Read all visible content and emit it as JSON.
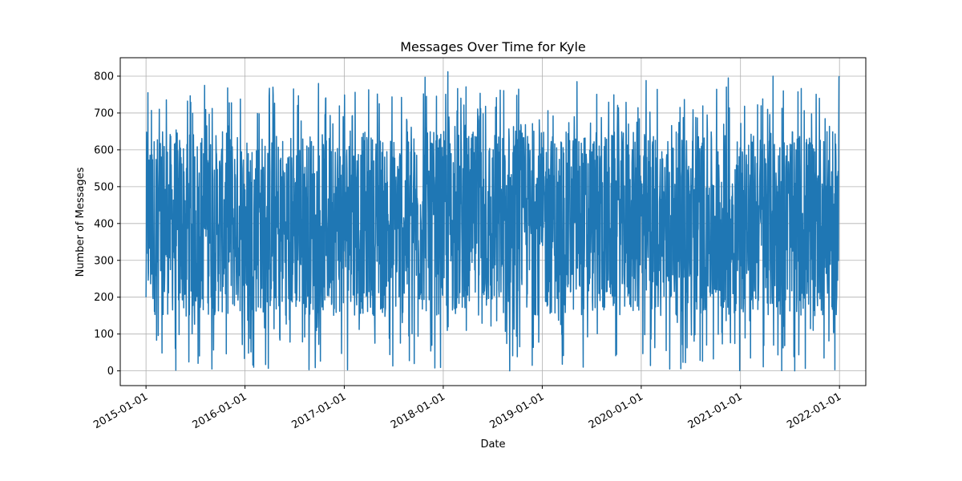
{
  "chart_data": {
    "type": "line",
    "title": "Messages Over Time for Kyle",
    "xlabel": "Date",
    "ylabel": "Number of Messages",
    "x_ticks": [
      "2015-01-01",
      "2016-01-01",
      "2017-01-01",
      "2018-01-01",
      "2019-01-01",
      "2020-01-01",
      "2021-01-01",
      "2022-01-01"
    ],
    "y_ticks": [
      0,
      100,
      200,
      300,
      400,
      500,
      600,
      700,
      800
    ],
    "xlim": [
      "2014-09-28",
      "2022-04-08"
    ],
    "ylim": [
      -40,
      850
    ],
    "date_range": [
      "2015-01-01",
      "2021-12-31"
    ],
    "value_range": [
      0,
      812
    ],
    "frequency": "daily",
    "grid": true,
    "series": [
      {
        "color": "#1f77b4",
        "summary": {
          "first_value": 200,
          "last_value": 800,
          "min": 0,
          "max": 812,
          "typical_low": 150,
          "typical_high": 650
        },
        "peaks": [
          {
            "date": "2015-01-08",
            "value": 755
          },
          {
            "date": "2015-08-05",
            "value": 775
          },
          {
            "date": "2016-04-13",
            "value": 770
          },
          {
            "date": "2016-09-28",
            "value": 780
          },
          {
            "date": "2017-10-26",
            "value": 797
          },
          {
            "date": "2018-01-18",
            "value": 812
          },
          {
            "date": "2019-05-09",
            "value": 785
          },
          {
            "date": "2020-01-19",
            "value": 788
          },
          {
            "date": "2020-11-17",
            "value": 795
          },
          {
            "date": "2021-05-01",
            "value": 800
          },
          {
            "date": "2021-12-30",
            "value": 797
          }
        ],
        "troughs": [
          {
            "date": "2015-04-21",
            "value": 2
          },
          {
            "date": "2015-09-01",
            "value": 5
          },
          {
            "date": "2016-08-24",
            "value": 3
          },
          {
            "date": "2017-12-01",
            "value": 8
          },
          {
            "date": "2018-09-03",
            "value": 0
          },
          {
            "date": "2019-06-01",
            "value": 10
          },
          {
            "date": "2020-04-15",
            "value": 5
          },
          {
            "date": "2021-07-20",
            "value": 0
          },
          {
            "date": "2021-12-15",
            "value": 3
          }
        ]
      }
    ]
  }
}
